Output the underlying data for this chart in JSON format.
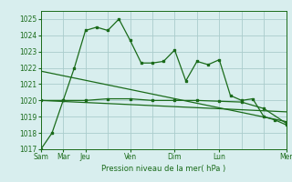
{
  "background_color": "#d8eeee",
  "grid_color": "#aacccc",
  "line_color": "#1a6b1a",
  "title": "Pression niveau de la mer( hPa )",
  "ylim": [
    1017,
    1025.5
  ],
  "yticks": [
    1017,
    1018,
    1019,
    1020,
    1021,
    1022,
    1023,
    1024,
    1025
  ],
  "day_positions": [
    0,
    2,
    4,
    6,
    8,
    10,
    12,
    14,
    16,
    18,
    20,
    22
  ],
  "day_tick_positions": [
    0,
    2,
    4,
    8,
    12,
    16,
    22
  ],
  "day_tick_labels": [
    "Sam",
    "Mar",
    "Jeu",
    "Ven",
    "Dim",
    "Lun",
    "Mer"
  ],
  "series1": {
    "x": [
      0,
      1,
      2,
      3,
      4,
      5,
      6,
      7,
      8,
      9,
      10,
      11,
      12,
      13,
      14,
      15,
      16,
      17,
      18,
      19,
      20,
      21,
      22
    ],
    "y": [
      1017.0,
      1018.0,
      1020.0,
      1022.0,
      1024.3,
      1024.5,
      1024.3,
      1025.0,
      1023.7,
      1022.3,
      1022.3,
      1022.4,
      1023.1,
      1021.2,
      1022.4,
      1022.2,
      1022.5,
      1020.3,
      1020.0,
      1020.1,
      1019.0,
      1018.8,
      1018.5
    ]
  },
  "series2": {
    "x": [
      0,
      2,
      4,
      6,
      8,
      10,
      12,
      14,
      16,
      18,
      20,
      22
    ],
    "y": [
      1020.0,
      1020.0,
      1020.0,
      1020.1,
      1020.1,
      1020.0,
      1020.0,
      1020.0,
      1019.95,
      1019.9,
      1019.5,
      1018.6
    ]
  },
  "series3_linear": {
    "x": [
      0,
      22
    ],
    "y": [
      1021.8,
      1018.7
    ]
  },
  "series4_linear": {
    "x": [
      0,
      22
    ],
    "y": [
      1020.0,
      1019.3
    ]
  },
  "figsize": [
    3.2,
    2.0
  ],
  "dpi": 100
}
